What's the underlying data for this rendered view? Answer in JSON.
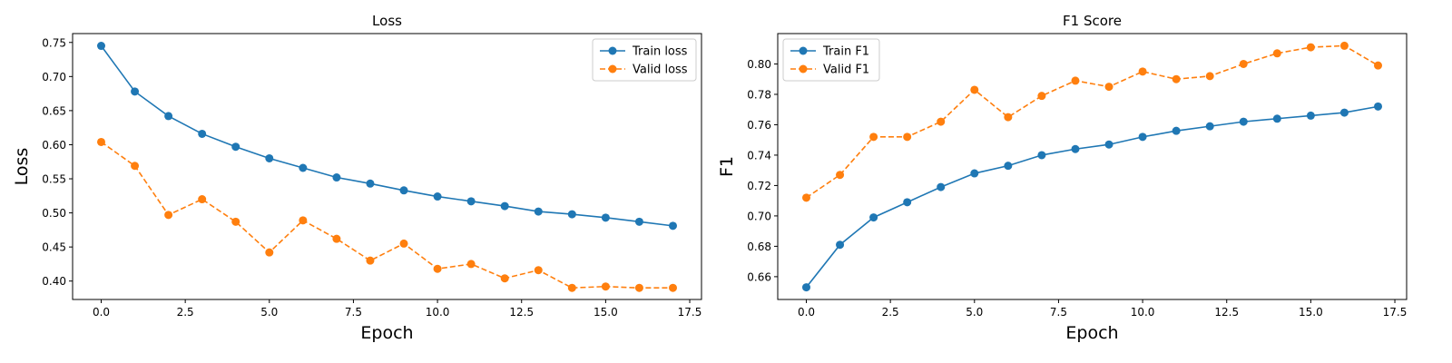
{
  "chart_data": [
    {
      "type": "line",
      "title": "Loss",
      "xlabel": "Epoch",
      "ylabel": "Loss",
      "x": [
        0,
        1,
        2,
        3,
        4,
        5,
        6,
        7,
        8,
        9,
        10,
        11,
        12,
        13,
        14,
        15,
        16,
        17
      ],
      "xlim": [
        -0.85,
        17.85
      ],
      "ylim": [
        0.373,
        0.763
      ],
      "xticks": [
        0.0,
        2.5,
        5.0,
        7.5,
        10.0,
        12.5,
        15.0,
        17.5
      ],
      "xtick_labels": [
        "0.0",
        "2.5",
        "5.0",
        "7.5",
        "10.0",
        "12.5",
        "15.0",
        "17.5"
      ],
      "yticks": [
        0.4,
        0.45,
        0.5,
        0.55,
        0.6,
        0.65,
        0.7,
        0.75
      ],
      "ytick_labels": [
        "0.40",
        "0.45",
        "0.50",
        "0.55",
        "0.60",
        "0.65",
        "0.70",
        "0.75"
      ],
      "legend_position": "upper right",
      "grid": false,
      "series": [
        {
          "name": "Train loss",
          "style": "solid",
          "color": "#1f77b4",
          "values": [
            0.745,
            0.678,
            0.642,
            0.616,
            0.597,
            0.58,
            0.566,
            0.552,
            0.543,
            0.533,
            0.524,
            0.517,
            0.51,
            0.502,
            0.498,
            0.493,
            0.487,
            0.481
          ]
        },
        {
          "name": "Valid loss",
          "style": "dashed",
          "color": "#ff7f0e",
          "values": [
            0.604,
            0.569,
            0.497,
            0.52,
            0.487,
            0.442,
            0.489,
            0.462,
            0.43,
            0.455,
            0.418,
            0.425,
            0.404,
            0.416,
            0.39,
            0.392,
            0.39,
            0.39
          ]
        }
      ]
    },
    {
      "type": "line",
      "title": "F1 Score",
      "xlabel": "Epoch",
      "ylabel": "F1",
      "x": [
        0,
        1,
        2,
        3,
        4,
        5,
        6,
        7,
        8,
        9,
        10,
        11,
        12,
        13,
        14,
        15,
        16,
        17
      ],
      "xlim": [
        -0.85,
        17.85
      ],
      "ylim": [
        0.645,
        0.82
      ],
      "xticks": [
        0.0,
        2.5,
        5.0,
        7.5,
        10.0,
        12.5,
        15.0,
        17.5
      ],
      "xtick_labels": [
        "0.0",
        "2.5",
        "5.0",
        "7.5",
        "10.0",
        "12.5",
        "15.0",
        "17.5"
      ],
      "yticks": [
        0.66,
        0.68,
        0.7,
        0.72,
        0.74,
        0.76,
        0.78,
        0.8
      ],
      "ytick_labels": [
        "0.66",
        "0.68",
        "0.70",
        "0.72",
        "0.74",
        "0.76",
        "0.78",
        "0.80"
      ],
      "legend_position": "upper left",
      "grid": false,
      "series": [
        {
          "name": "Train F1",
          "style": "solid",
          "color": "#1f77b4",
          "values": [
            0.653,
            0.681,
            0.699,
            0.709,
            0.719,
            0.728,
            0.733,
            0.74,
            0.744,
            0.747,
            0.752,
            0.756,
            0.759,
            0.762,
            0.764,
            0.766,
            0.768,
            0.772
          ]
        },
        {
          "name": "Valid F1",
          "style": "dashed",
          "color": "#ff7f0e",
          "values": [
            0.712,
            0.727,
            0.752,
            0.752,
            0.762,
            0.783,
            0.765,
            0.779,
            0.789,
            0.785,
            0.795,
            0.79,
            0.792,
            0.8,
            0.807,
            0.811,
            0.812,
            0.799
          ]
        }
      ]
    }
  ]
}
